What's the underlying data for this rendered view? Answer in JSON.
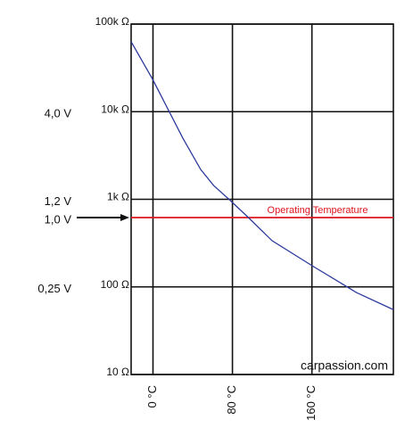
{
  "chart_data": {
    "type": "line",
    "x": [
      -22,
      0,
      30,
      48,
      61,
      78,
      97,
      120,
      160,
      205,
      242
    ],
    "series": [
      {
        "color": "#2b3a9c",
        "values": [
          63000,
          23000,
          5000,
          2190,
          1440,
          966,
          604,
          336,
          175,
          86,
          55
        ]
      }
    ],
    "xlim": [
      -22,
      242
    ],
    "xticks": [
      {
        "value": 0,
        "label": "0 °C"
      },
      {
        "value": 80,
        "label": "80 °C"
      },
      {
        "value": 160,
        "label": "160 °C"
      }
    ],
    "ylim": [
      10,
      100000
    ],
    "yticks": [
      {
        "value": 10,
        "label": "10 Ω"
      },
      {
        "value": 100,
        "label": "100 Ω"
      },
      {
        "value": 1000,
        "label": "1k Ω"
      },
      {
        "value": 10000,
        "label": "10k Ω"
      },
      {
        "value": 100000,
        "label": "100k Ω"
      }
    ],
    "log_y": true,
    "grid": true,
    "reference_line": {
      "value": 618,
      "label": "Operating Temperature",
      "color": "#e0141e"
    },
    "annotations": [
      {
        "text": "4,0 V",
        "at": 10000
      },
      {
        "text": "1,2 V",
        "at": 1000
      },
      {
        "text": "1,0 V",
        "at": 618,
        "arrow": true
      },
      {
        "text": "0,25 V",
        "at": 100
      }
    ],
    "watermark": "carpassion.com"
  }
}
